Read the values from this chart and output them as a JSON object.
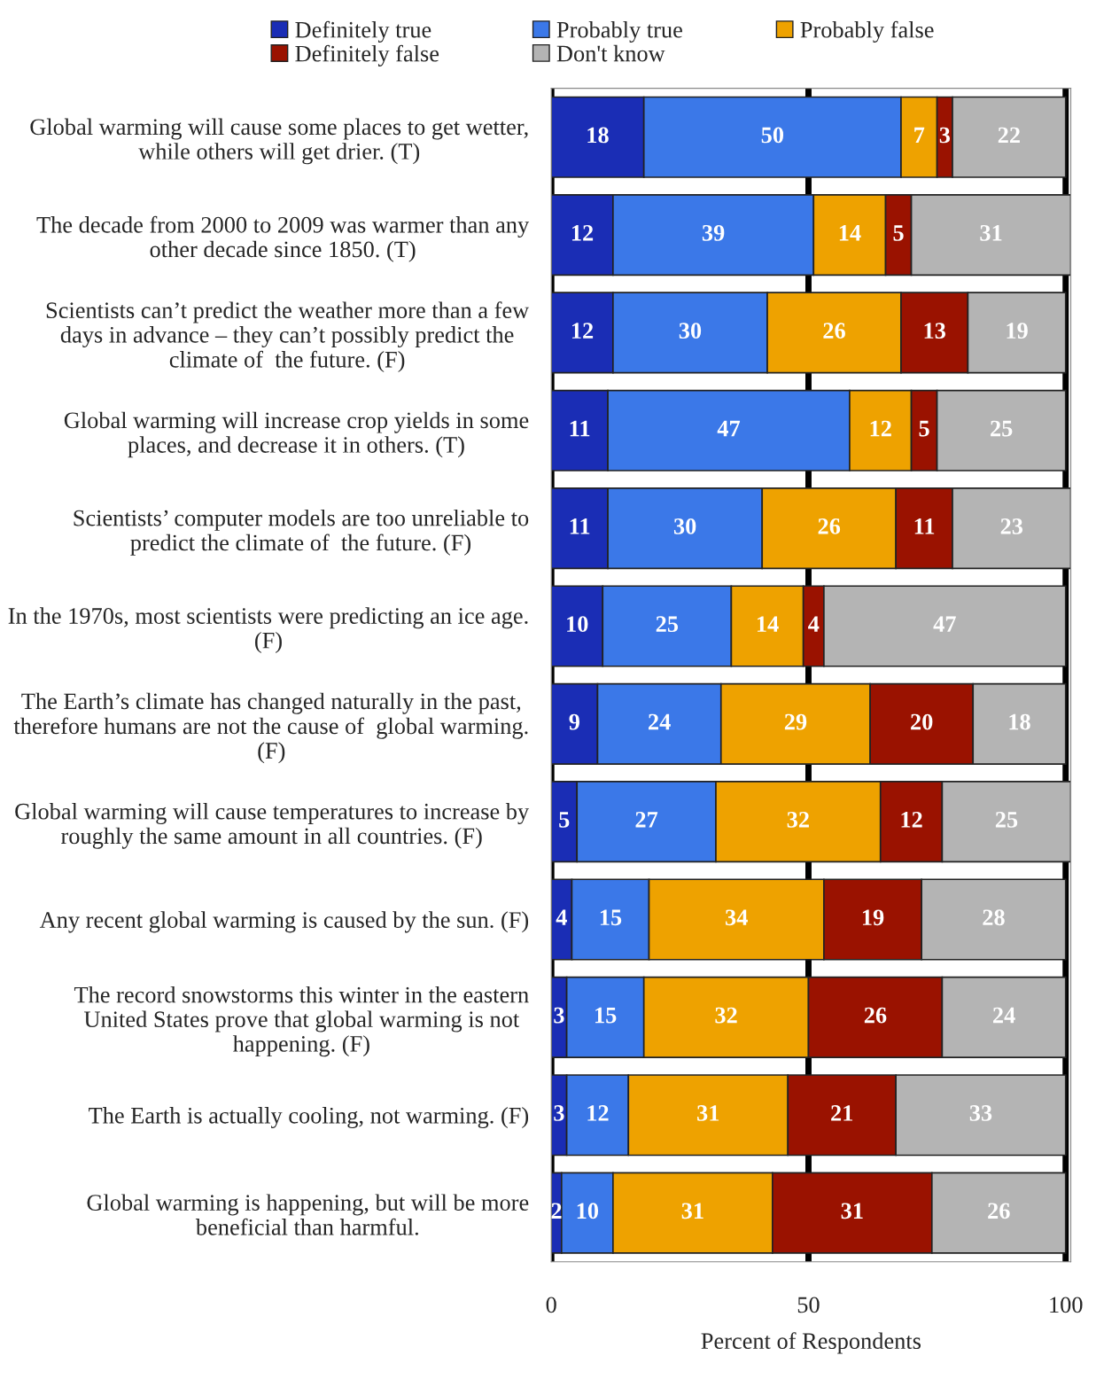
{
  "chart_data": {
    "type": "bar",
    "orientation": "horizontal",
    "stacked": true,
    "data_labels": true,
    "categories": [
      "Global warming will cause some places to get wetter, while others will get drier. (T)",
      "The decade from 2000 to 2009 was warmer than any other decade since 1850. (T)",
      "Scientists can’t predict the weather more than a few days in advance – they can’t possibly predict the climate of  the future. (F)",
      "Global warming will increase crop yields in some places, and decrease it in others. (T)",
      "Scientists’ computer models are too unreliable to predict the climate of  the future. (F)",
      "In the 1970s, most scientists were predicting an ice age. (F)",
      "The Earth’s climate has changed naturally in the past, therefore humans are not the cause of  global warming. (F)",
      "Global warming will cause temperatures to increase by roughly the same amount in all countries. (F)",
      "Any recent global warming is caused by the sun. (F)",
      "The record snowstorms this winter in the eastern United States prove that global warming is not happening. (F)",
      "The Earth is actually cooling, not warming. (F)",
      "Global warming is happening, but will be more beneficial than harmful."
    ],
    "series": [
      {
        "name": "Definitely true",
        "color": "#1a2db5",
        "values": [
          18,
          12,
          12,
          11,
          11,
          10,
          9,
          5,
          4,
          3,
          3,
          2
        ]
      },
      {
        "name": "Probably true",
        "color": "#3b78e8",
        "values": [
          50,
          39,
          30,
          47,
          30,
          25,
          24,
          27,
          15,
          15,
          12,
          10
        ]
      },
      {
        "name": "Probably false",
        "color": "#eea200",
        "values": [
          7,
          14,
          26,
          12,
          26,
          14,
          29,
          32,
          34,
          32,
          31,
          31
        ]
      },
      {
        "name": "Definitely false",
        "color": "#9a1200",
        "values": [
          3,
          5,
          13,
          5,
          11,
          4,
          20,
          12,
          19,
          26,
          21,
          31
        ]
      },
      {
        "name": "Don't know",
        "color": "#b4b4b4",
        "values": [
          22,
          31,
          19,
          25,
          23,
          47,
          18,
          25,
          28,
          24,
          33,
          26
        ]
      }
    ],
    "xlim": [
      0,
      101
    ],
    "xticks": [
      0,
      50,
      100
    ],
    "xlabel": "Percent of Respondents",
    "grid": "x",
    "legend": "top"
  }
}
